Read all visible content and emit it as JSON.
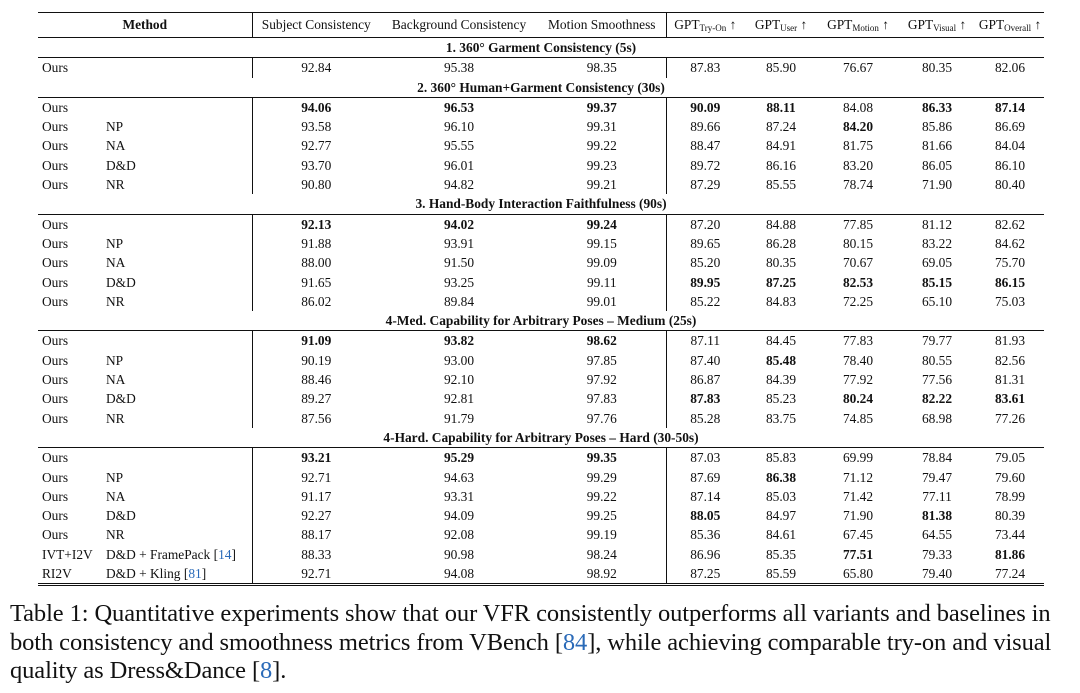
{
  "table": {
    "headers": {
      "method": "Method",
      "subject": "Subject Consistency",
      "background": "Background Consistency",
      "motion": "Motion Smoothness",
      "gpt_prefix": "GPT",
      "gpt_tryon_sub": "Try-On",
      "gpt_user_sub": "User",
      "gpt_motion_sub": "Motion",
      "gpt_visual_sub": "Visual",
      "gpt_overall_sub": "Overall",
      "arrow": "↑"
    },
    "sections": [
      {
        "title": "1. 360° Garment Consistency (5s)",
        "rows": [
          {
            "m1": "Ours",
            "m2": "",
            "vals": [
              "92.84",
              "95.38",
              "98.35",
              "87.83",
              "85.90",
              "76.67",
              "80.35",
              "82.06"
            ],
            "bold": []
          }
        ]
      },
      {
        "title": "2. 360° Human+Garment Consistency (30s)",
        "rows": [
          {
            "m1": "Ours",
            "m2": "",
            "vals": [
              "94.06",
              "96.53",
              "99.37",
              "90.09",
              "88.11",
              "84.08",
              "86.33",
              "87.14"
            ],
            "bold": [
              0,
              1,
              2,
              3,
              4,
              6,
              7
            ]
          },
          {
            "m1": "Ours",
            "m2": "NP",
            "vals": [
              "93.58",
              "96.10",
              "99.31",
              "89.66",
              "87.24",
              "84.20",
              "85.86",
              "86.69"
            ],
            "bold": [
              5
            ]
          },
          {
            "m1": "Ours",
            "m2": "NA",
            "vals": [
              "92.77",
              "95.55",
              "99.22",
              "88.47",
              "84.91",
              "81.75",
              "81.66",
              "84.04"
            ],
            "bold": []
          },
          {
            "m1": "Ours",
            "m2": "D&D",
            "vals": [
              "93.70",
              "96.01",
              "99.23",
              "89.72",
              "86.16",
              "83.20",
              "86.05",
              "86.10"
            ],
            "bold": []
          },
          {
            "m1": "Ours",
            "m2": "NR",
            "vals": [
              "90.80",
              "94.82",
              "99.21",
              "87.29",
              "85.55",
              "78.74",
              "71.90",
              "80.40"
            ],
            "bold": []
          }
        ]
      },
      {
        "title": "3. Hand-Body Interaction Faithfulness (90s)",
        "rows": [
          {
            "m1": "Ours",
            "m2": "",
            "vals": [
              "92.13",
              "94.02",
              "99.24",
              "87.20",
              "84.88",
              "77.85",
              "81.12",
              "82.62"
            ],
            "bold": [
              0,
              1,
              2
            ]
          },
          {
            "m1": "Ours",
            "m2": "NP",
            "vals": [
              "91.88",
              "93.91",
              "99.15",
              "89.65",
              "86.28",
              "80.15",
              "83.22",
              "84.62"
            ],
            "bold": []
          },
          {
            "m1": "Ours",
            "m2": "NA",
            "vals": [
              "88.00",
              "91.50",
              "99.09",
              "85.20",
              "80.35",
              "70.67",
              "69.05",
              "75.70"
            ],
            "bold": []
          },
          {
            "m1": "Ours",
            "m2": "D&D",
            "vals": [
              "91.65",
              "93.25",
              "99.11",
              "89.95",
              "87.25",
              "82.53",
              "85.15",
              "86.15"
            ],
            "bold": [
              3,
              4,
              5,
              6,
              7
            ]
          },
          {
            "m1": "Ours",
            "m2": "NR",
            "vals": [
              "86.02",
              "89.84",
              "99.01",
              "85.22",
              "84.83",
              "72.25",
              "65.10",
              "75.03"
            ],
            "bold": []
          }
        ]
      },
      {
        "title": "4-Med. Capability for Arbitrary Poses – Medium (25s)",
        "rows": [
          {
            "m1": "Ours",
            "m2": "",
            "vals": [
              "91.09",
              "93.82",
              "98.62",
              "87.11",
              "84.45",
              "77.83",
              "79.77",
              "81.93"
            ],
            "bold": [
              0,
              1,
              2
            ]
          },
          {
            "m1": "Ours",
            "m2": "NP",
            "vals": [
              "90.19",
              "93.00",
              "97.85",
              "87.40",
              "85.48",
              "78.40",
              "80.55",
              "82.56"
            ],
            "bold": [
              4
            ]
          },
          {
            "m1": "Ours",
            "m2": "NA",
            "vals": [
              "88.46",
              "92.10",
              "97.92",
              "86.87",
              "84.39",
              "77.92",
              "77.56",
              "81.31"
            ],
            "bold": []
          },
          {
            "m1": "Ours",
            "m2": "D&D",
            "vals": [
              "89.27",
              "92.81",
              "97.83",
              "87.83",
              "85.23",
              "80.24",
              "82.22",
              "83.61"
            ],
            "bold": [
              3,
              5,
              6,
              7
            ]
          },
          {
            "m1": "Ours",
            "m2": "NR",
            "vals": [
              "87.56",
              "91.79",
              "97.76",
              "85.28",
              "83.75",
              "74.85",
              "68.98",
              "77.26"
            ],
            "bold": []
          }
        ]
      },
      {
        "title": "4-Hard. Capability for Arbitrary Poses – Hard (30-50s)",
        "rows": [
          {
            "m1": "Ours",
            "m2": "",
            "vals": [
              "93.21",
              "95.29",
              "99.35",
              "87.03",
              "85.83",
              "69.99",
              "78.84",
              "79.05"
            ],
            "bold": [
              0,
              1,
              2
            ]
          },
          {
            "m1": "Ours",
            "m2": "NP",
            "vals": [
              "92.71",
              "94.63",
              "99.29",
              "87.69",
              "86.38",
              "71.12",
              "79.47",
              "79.60"
            ],
            "bold": [
              4
            ]
          },
          {
            "m1": "Ours",
            "m2": "NA",
            "vals": [
              "91.17",
              "93.31",
              "99.22",
              "87.14",
              "85.03",
              "71.42",
              "77.11",
              "78.99"
            ],
            "bold": []
          },
          {
            "m1": "Ours",
            "m2": "D&D",
            "vals": [
              "92.27",
              "94.09",
              "99.25",
              "88.05",
              "84.97",
              "71.90",
              "81.38",
              "80.39"
            ],
            "bold": [
              3,
              6
            ]
          },
          {
            "m1": "Ours",
            "m2": "NR",
            "vals": [
              "88.17",
              "92.08",
              "99.19",
              "85.36",
              "84.61",
              "67.45",
              "64.55",
              "73.44"
            ],
            "bold": []
          },
          {
            "m1": "IVT+I2V",
            "m2": "D&D + FramePack",
            "ref": "14",
            "vals": [
              "88.33",
              "90.98",
              "98.24",
              "86.96",
              "85.35",
              "77.51",
              "79.33",
              "81.86"
            ],
            "bold": [
              5,
              7
            ]
          },
          {
            "m1": "RI2V",
            "m2": "D&D + Kling",
            "ref": "81",
            "vals": [
              "92.71",
              "94.08",
              "98.92",
              "87.25",
              "85.59",
              "65.80",
              "79.40",
              "77.24"
            ],
            "bold": []
          }
        ]
      }
    ]
  },
  "caption": {
    "part1": "Table 1: Quantitative experiments show that our VFR consistently outperforms all variants and baselines in both consistency and smoothness metrics from VBench [",
    "ref1": "84",
    "part2": "], while achieving comparable try-on and visual quality as Dress&Dance [",
    "ref2": "8",
    "part3": "]."
  }
}
